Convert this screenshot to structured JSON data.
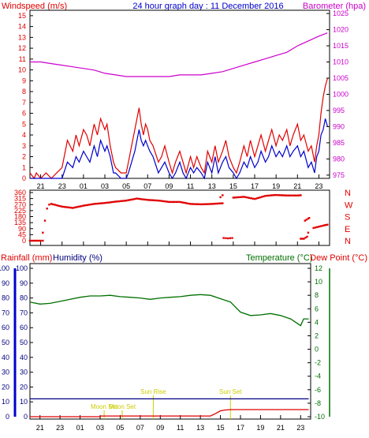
{
  "chart_data": [
    {
      "type": "line",
      "title": "24 hour graph day : 11 December 2016",
      "ylabel_left": "Windspeed (m/s)",
      "ylabel_right": "Barometer (hpa)",
      "x_ticks": [
        "21",
        "23",
        "01",
        "03",
        "05",
        "07",
        "09",
        "11",
        "13",
        "15",
        "17",
        "19",
        "21",
        "23"
      ],
      "y_left_ticks": [
        "0",
        "1",
        "2",
        "3",
        "4",
        "5",
        "6",
        "7",
        "8",
        "9",
        "10",
        "11",
        "12",
        "13",
        "14",
        "15"
      ],
      "y_right_ticks": [
        "975",
        "980",
        "985",
        "990",
        "995",
        "1000",
        "1005",
        "1010",
        "1015",
        "1020",
        "1025"
      ],
      "ylim_left": [
        0,
        15.5
      ],
      "ylim_right": [
        974,
        1026
      ],
      "colors": {
        "gust": "#e00000",
        "average": "#0000cc",
        "barometer": "#cc00cc"
      },
      "series": [
        {
          "axis": "left",
          "color": "gust",
          "x": [
            -4,
            -3.6,
            -3.4,
            -3,
            -2.5,
            -2,
            -1.5,
            -1,
            -0.5,
            0,
            0.3,
            0.6,
            1,
            1.3,
            1.6,
            2,
            2.3,
            2.6,
            3,
            3.2,
            3.5,
            3.8,
            4,
            4.5,
            5,
            5.2,
            5.5,
            5.8,
            6,
            6.2,
            6.4,
            6.6,
            6.8,
            7,
            7.2,
            7.5,
            8,
            8.3,
            8.6,
            9,
            9.3,
            9.6,
            10,
            10.3,
            10.6,
            11,
            11.3,
            11.6,
            12,
            12.3,
            12.6,
            13,
            13.3,
            13.6,
            14,
            14.3,
            14.6,
            15,
            15.3,
            15.6,
            16,
            16.3,
            16.6,
            17,
            17.3,
            17.6,
            18,
            18.3,
            18.6,
            19,
            19.3,
            19.6,
            20,
            20.3,
            20.6,
            21,
            21.3,
            21.6,
            22,
            22.3,
            22.6,
            22.8,
            23,
            23.2,
            23.4,
            23.6,
            23.8
          ],
          "y": [
            0.5,
            0,
            0.5,
            0,
            0.5,
            0,
            0.5,
            1,
            3.5,
            2.5,
            4,
            3,
            4.5,
            4,
            3,
            5,
            4,
            5.5,
            4.5,
            5,
            3,
            1.5,
            1,
            0.5,
            0.5,
            1.5,
            3,
            4.5,
            5.5,
            6.5,
            5,
            4,
            5,
            4.5,
            3.5,
            3,
            1.5,
            2,
            3,
            1.5,
            0.5,
            1.5,
            2.5,
            1.5,
            0.5,
            2,
            1,
            2,
            1,
            0.5,
            2.5,
            1.5,
            3,
            1.5,
            2.5,
            3.5,
            2,
            1,
            0.5,
            1.5,
            3,
            2,
            3.5,
            2,
            3,
            4,
            2.5,
            3.5,
            4.5,
            3,
            4,
            3.5,
            4.5,
            3,
            4,
            5,
            3.5,
            4,
            2.5,
            3,
            1.5,
            3,
            4,
            6,
            7.5,
            8.5,
            9.2
          ]
        },
        {
          "axis": "left",
          "color": "average",
          "x": [
            -4,
            -3.6,
            -3,
            -2.5,
            -2,
            -1.5,
            -1,
            -0.5,
            0,
            0.3,
            0.6,
            1,
            1.3,
            1.6,
            2,
            2.3,
            2.6,
            3,
            3.2,
            3.5,
            3.8,
            4,
            4.5,
            5,
            5.2,
            5.5,
            5.8,
            6,
            6.2,
            6.4,
            6.6,
            6.8,
            7,
            7.2,
            7.5,
            8,
            8.3,
            8.6,
            9,
            9.3,
            9.6,
            10,
            10.3,
            10.6,
            11,
            11.3,
            11.6,
            12,
            12.3,
            12.6,
            13,
            13.3,
            13.6,
            14,
            14.3,
            14.6,
            15,
            15.3,
            15.6,
            16,
            16.3,
            16.6,
            17,
            17.3,
            17.6,
            18,
            18.3,
            18.6,
            19,
            19.3,
            19.6,
            20,
            20.3,
            20.6,
            21,
            21.3,
            21.6,
            22,
            22.3,
            22.6,
            22.8,
            23,
            23.2,
            23.4,
            23.6,
            23.8
          ],
          "y": [
            0,
            0,
            0,
            0,
            0,
            0,
            0,
            1.5,
            1,
            2,
            1.5,
            2.5,
            2,
            1.5,
            3,
            2,
            3.5,
            2.5,
            3,
            2,
            0.5,
            0.5,
            0,
            0,
            0.5,
            1.5,
            2.5,
            3.5,
            4.5,
            3.5,
            3,
            3.5,
            3,
            2.5,
            2,
            0.5,
            1,
            1.5,
            0.5,
            0,
            0.5,
            1.5,
            0.5,
            0,
            1,
            0.5,
            1,
            0.5,
            0,
            1.5,
            0.5,
            2,
            0.5,
            1.5,
            2,
            1,
            0.5,
            0,
            0.5,
            1.5,
            1,
            2,
            1,
            1.5,
            2.5,
            1.5,
            2,
            3,
            2,
            2.5,
            2,
            3,
            2,
            2.5,
            3,
            2,
            2.5,
            1,
            1.5,
            0.5,
            2,
            2.5,
            4,
            4.5,
            5.5,
            4.8
          ]
        },
        {
          "axis": "right",
          "color": "barometer",
          "x": [
            -4,
            -3,
            -2,
            -1,
            0,
            1,
            2,
            3,
            4,
            5,
            6,
            7,
            8,
            9,
            10,
            11,
            12,
            13,
            14,
            15,
            16,
            17,
            18,
            19,
            20,
            21,
            22,
            23,
            23.8
          ],
          "y": [
            1010,
            1010,
            1009.5,
            1009,
            1008.5,
            1008,
            1007.5,
            1006.5,
            1006,
            1005.5,
            1005.5,
            1005.5,
            1005.5,
            1005.5,
            1006,
            1006,
            1006,
            1006.5,
            1007,
            1008,
            1009,
            1010,
            1011,
            1012,
            1013,
            1015,
            1016.5,
            1018,
            1019
          ]
        }
      ]
    },
    {
      "type": "scatter",
      "title": "",
      "y_ticks": [
        "360",
        "315",
        "270",
        "225",
        "180",
        "135",
        "90",
        "45",
        "0"
      ],
      "right_labels": [
        "N",
        "W",
        "S",
        "E",
        "N"
      ],
      "ylim": [
        0,
        360
      ],
      "colors": {
        "points": "#e00000"
      },
      "segments": [
        {
          "x": [
            -4,
            -3.5,
            -3,
            -2.8
          ],
          "y": [
            0,
            0,
            0,
            0
          ]
        },
        {
          "x": [
            -2.8,
            -2.6,
            -2.4,
            -2.2,
            -2
          ],
          "y": [
            60,
            150,
            240,
            270,
            275
          ]
        },
        {
          "x": [
            -2,
            -1,
            0,
            1,
            2,
            3,
            4,
            5,
            6,
            7,
            8,
            9,
            10,
            11,
            12,
            13,
            14
          ],
          "y": [
            275,
            255,
            245,
            262,
            275,
            282,
            292,
            300,
            315,
            305,
            300,
            290,
            290,
            275,
            272,
            275,
            280
          ]
        },
        {
          "x": [
            13.8,
            14
          ],
          "y": [
            325,
            340
          ]
        },
        {
          "x": [
            14.1,
            14.5,
            14.9
          ],
          "y": [
            20,
            18,
            20
          ]
        },
        {
          "x": [
            15,
            16,
            17,
            18,
            19,
            20,
            21,
            21.3
          ],
          "y": [
            322,
            328,
            312,
            335,
            342,
            338,
            338,
            340
          ]
        },
        {
          "x": [
            21.3,
            21.6,
            21.9,
            22
          ],
          "y": [
            15,
            15,
            30,
            60
          ]
        },
        {
          "x": [
            21.7,
            22,
            22.1
          ],
          "y": [
            150,
            165,
            170
          ]
        },
        {
          "x": [
            22.5,
            23,
            23.5,
            23.8
          ],
          "y": [
            95,
            105,
            115,
            120
          ]
        }
      ]
    },
    {
      "type": "line",
      "title": "",
      "ylabel_left_1": "Rainfall (mm)",
      "ylabel_left_2": "Humidity (%)",
      "ylabel_right_1": "Temperature (°C)",
      "ylabel_right_2": "Dew Point (°C)",
      "x_ticks": [
        "21",
        "23",
        "01",
        "03",
        "05",
        "07",
        "09",
        "11",
        "13",
        "15",
        "17",
        "19",
        "21",
        "23"
      ],
      "y_left_ticks": [
        "0",
        "10",
        "20",
        "30",
        "40",
        "50",
        "60",
        "70",
        "80",
        "90",
        "100"
      ],
      "y_right_ticks": [
        "12",
        "10",
        "8",
        "6",
        "4",
        "2",
        "0",
        "-2",
        "-4",
        "-6",
        "-8",
        "-10"
      ],
      "ylim_left": [
        0,
        100
      ],
      "ylim_right": [
        -10,
        12
      ],
      "colors": {
        "temperature": "#007000",
        "rainfall": "#e00000",
        "humidity": "#000080"
      },
      "annotations": [
        {
          "text": "Moon Set",
          "x": 3.4,
          "color": "#cccc00"
        },
        {
          "text": "Moon Set",
          "x": 5.2,
          "color": "#cccc00"
        },
        {
          "text": "Sun Rise",
          "x": 8.3,
          "color": "#cccc00"
        },
        {
          "text": "Sun Set",
          "x": 16,
          "color": "#cccc00"
        }
      ],
      "series": [
        {
          "axis": "right",
          "color": "temperature",
          "x": [
            -4,
            -3,
            -2,
            -1,
            0,
            1,
            2,
            3,
            4,
            5,
            6,
            7,
            8,
            9,
            10,
            11,
            12,
            13,
            14,
            15,
            16,
            17,
            18,
            19,
            20,
            21,
            22,
            23,
            23.3,
            23.8
          ],
          "y": [
            7,
            6.7,
            6.8,
            7.1,
            7.4,
            7.7,
            7.9,
            7.9,
            8,
            7.8,
            7.7,
            7.6,
            7.4,
            7.6,
            7.7,
            7.8,
            8,
            8.1,
            8,
            7.5,
            7,
            5.5,
            5,
            5.1,
            5.3,
            5,
            4.5,
            3.5,
            4.5,
            4.5
          ]
        },
        {
          "axis": "left",
          "color": "rainfall",
          "x": [
            -4,
            3,
            3.1,
            14,
            14.5,
            15,
            15.5,
            16,
            23.8
          ],
          "y": [
            0,
            0,
            0.5,
            0.5,
            2,
            4,
            4.5,
            4.8,
            4.8
          ]
        },
        {
          "axis": "left",
          "color": "humidity",
          "x": [
            -4,
            23.8
          ],
          "y": [
            12,
            12
          ]
        }
      ]
    }
  ]
}
